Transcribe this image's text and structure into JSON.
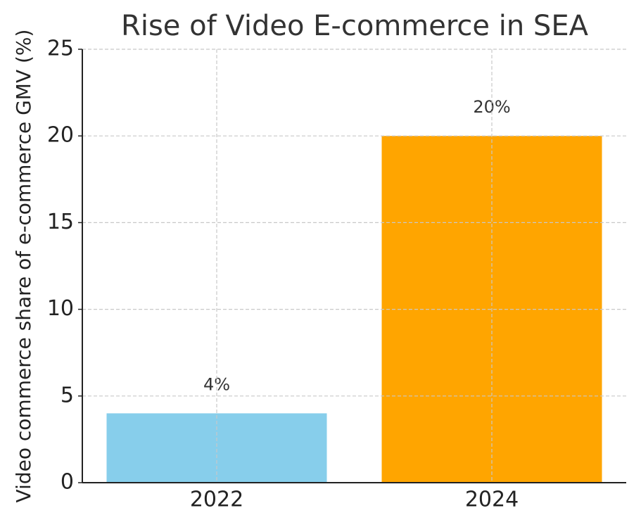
{
  "chart_data": {
    "type": "bar",
    "title": "Rise of Video E-commerce in SEA",
    "ylabel": "Video commerce share of e-commerce GMV (%)",
    "categories": [
      "2022",
      "2024"
    ],
    "values": [
      4,
      20
    ],
    "value_labels": [
      "4%",
      "20%"
    ],
    "colors": [
      "#87ceeb",
      "#ffa500"
    ],
    "ylim": [
      0,
      25
    ],
    "yticks": [
      0,
      5,
      10,
      15,
      20,
      25
    ],
    "grid": true
  }
}
